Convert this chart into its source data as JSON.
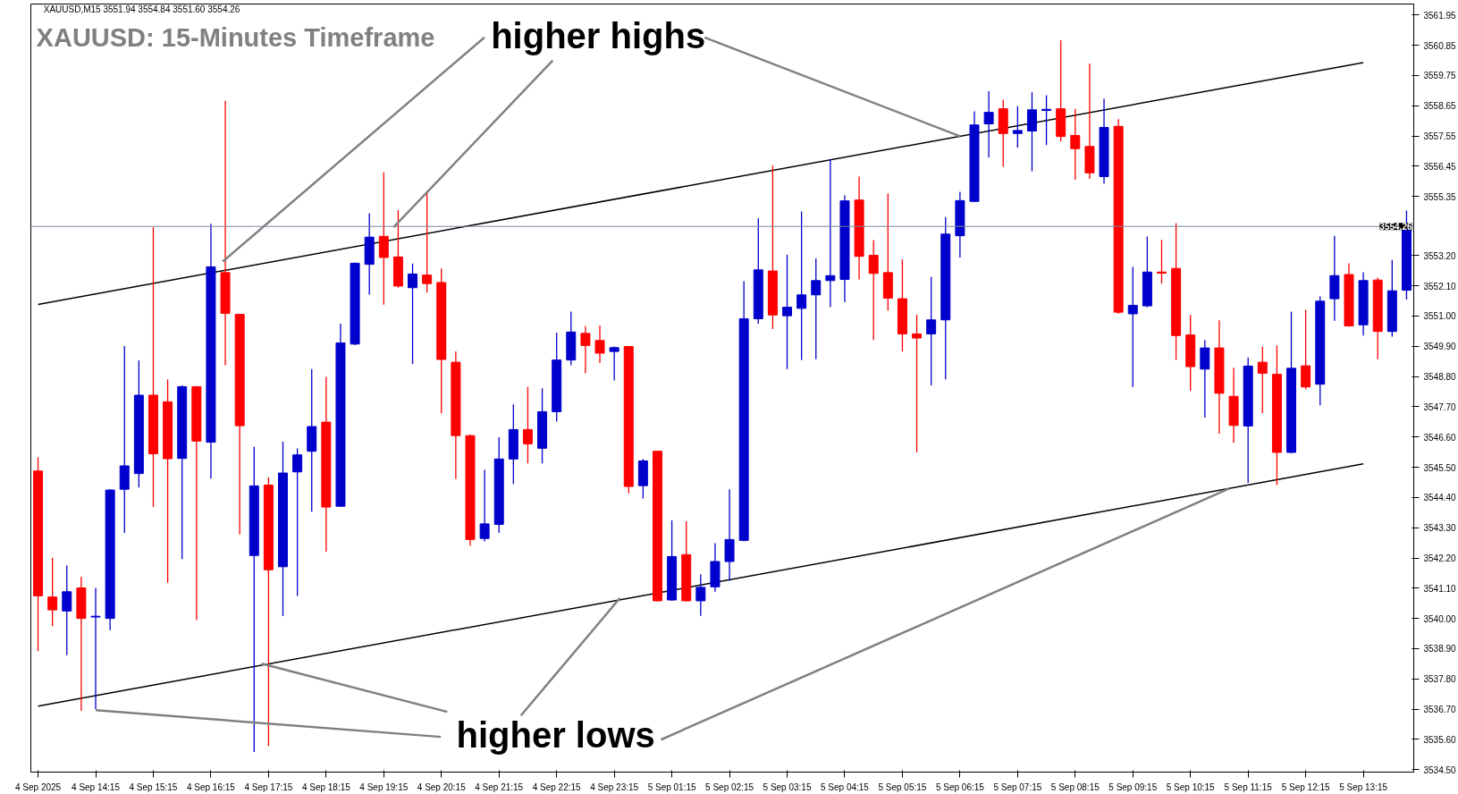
{
  "chart_data": {
    "type": "candlestick",
    "title": "XAUUSD: 15-Minutes Timeframe",
    "annotations": [
      "XAUUSD,M15  3551.94 3554.84 3551.60 3554.26",
      {
        "text": "higher highs",
        "x": "5 Sep 06:15",
        "y": 3557.54
      },
      {
        "text": "higher lows",
        "x": "4 Sep 14:15",
        "y": 3536.66
      }
    ],
    "categories": [
      "4 Sep 2025",
      null,
      null,
      null,
      "4 Sep 14:15",
      null,
      null,
      null,
      "4 Sep 15:15",
      null,
      null,
      null,
      "4 Sep 16:15",
      null,
      null,
      null,
      "4 Sep 17:15",
      null,
      null,
      null,
      "4 Sep 18:15",
      null,
      null,
      null,
      "4 Sep 19:15",
      null,
      null,
      null,
      "4 Sep 20:15",
      null,
      null,
      null,
      "4 Sep 21:15",
      null,
      null,
      null,
      "4 Sep 22:15",
      null,
      null,
      null,
      "4 Sep 23:15",
      null,
      null,
      null,
      "5 Sep 01:15",
      null,
      null,
      null,
      "5 Sep 02:15",
      null,
      null,
      null,
      "5 Sep 03:15",
      null,
      null,
      null,
      "5 Sep 04:15",
      null,
      null,
      null,
      "5 Sep 05:15",
      null,
      null,
      null,
      "5 Sep 06:15",
      null,
      null,
      null,
      "5 Sep 07:15",
      null,
      null,
      null,
      "5 Sep 08:15",
      null,
      null,
      null,
      "5 Sep 09:15",
      null,
      null,
      null,
      "5 Sep 10:15",
      null,
      null,
      null,
      "5 Sep 11:15",
      null,
      null,
      null,
      "5 Sep 12:15",
      null,
      null,
      null,
      "5 Sep 13:15",
      null,
      null,
      null
    ],
    "ohlc": [
      [
        3545.36,
        3545.86,
        3538.81,
        3540.82
      ],
      [
        3540.78,
        3542.21,
        3539.72,
        3540.31
      ],
      [
        3540.27,
        3541.92,
        3538.66,
        3540.97
      ],
      [
        3541.11,
        3541.52,
        3536.64,
        3540.0
      ],
      [
        3540.05,
        3541.11,
        3536.7,
        3540.08
      ],
      [
        3540.0,
        3544.7,
        3539.57,
        3544.67
      ],
      [
        3544.7,
        3549.91,
        3543.11,
        3545.55
      ],
      [
        3545.27,
        3549.39,
        3544.76,
        3548.12
      ],
      [
        3548.12,
        3554.23,
        3544.05,
        3545.99
      ],
      [
        3547.88,
        3548.7,
        3541.3,
        3545.81
      ],
      [
        3545.82,
        3548.48,
        3542.16,
        3548.43
      ],
      [
        3548.43,
        3548.45,
        3539.94,
        3546.45
      ],
      [
        3546.41,
        3554.36,
        3545.09,
        3552.79
      ],
      [
        3552.58,
        3558.83,
        3549.21,
        3551.1
      ],
      [
        3551.06,
        3551.08,
        3543.05,
        3547.01
      ],
      [
        3542.29,
        3546.24,
        3535.14,
        3544.82
      ],
      [
        3544.85,
        3545.13,
        3535.36,
        3541.77
      ],
      [
        3541.88,
        3546.43,
        3540.09,
        3545.29
      ],
      [
        3545.33,
        3546.19,
        3540.82,
        3545.95
      ],
      [
        3546.08,
        3549.07,
        3543.88,
        3546.98
      ],
      [
        3547.14,
        3548.79,
        3542.43,
        3544.05
      ],
      [
        3544.08,
        3550.72,
        3544.06,
        3550.02
      ],
      [
        3549.98,
        3552.95,
        3549.94,
        3552.92
      ],
      [
        3552.88,
        3554.74,
        3551.78,
        3553.87
      ],
      [
        3553.9,
        3556.23,
        3551.41,
        3553.13
      ],
      [
        3553.15,
        3554.85,
        3552.03,
        3552.09
      ],
      [
        3552.03,
        3552.91,
        3549.25,
        3552.53
      ],
      [
        3552.49,
        3555.55,
        3551.85,
        3552.18
      ],
      [
        3552.22,
        3552.73,
        3547.45,
        3549.42
      ],
      [
        3549.32,
        3549.71,
        3545.07,
        3546.65
      ],
      [
        3546.65,
        3546.7,
        3542.65,
        3542.87
      ],
      [
        3542.91,
        3545.4,
        3542.8,
        3543.44
      ],
      [
        3543.42,
        3546.59,
        3543.11,
        3545.8
      ],
      [
        3545.8,
        3547.79,
        3544.89,
        3546.87
      ],
      [
        3546.87,
        3548.42,
        3545.64,
        3546.35
      ],
      [
        3546.19,
        3548.37,
        3545.64,
        3547.52
      ],
      [
        3547.52,
        3550.4,
        3547.16,
        3549.4
      ],
      [
        3549.4,
        3551.16,
        3549.21,
        3550.42
      ],
      [
        3550.37,
        3550.63,
        3548.92,
        3549.93
      ],
      [
        3550.11,
        3550.66,
        3549.29,
        3549.65
      ],
      [
        3549.71,
        3549.89,
        3548.66,
        3549.85
      ],
      [
        3549.89,
        3549.91,
        3544.54,
        3544.8
      ],
      [
        3544.83,
        3545.8,
        3544.36,
        3545.73
      ],
      [
        3546.08,
        3546.1,
        3540.62,
        3540.64
      ],
      [
        3540.67,
        3543.57,
        3540.65,
        3542.25
      ],
      [
        3542.32,
        3543.53,
        3540.62,
        3540.64
      ],
      [
        3540.64,
        3541.61,
        3540.09,
        3541.13
      ],
      [
        3541.15,
        3542.74,
        3540.97,
        3542.07
      ],
      [
        3542.07,
        3544.7,
        3541.37,
        3542.87
      ],
      [
        3542.84,
        3552.27,
        3542.8,
        3550.9
      ],
      [
        3550.9,
        3554.56,
        3550.72,
        3552.68
      ],
      [
        3552.64,
        3556.47,
        3550.53,
        3551.04
      ],
      [
        3551.01,
        3553.23,
        3549.07,
        3551.32
      ],
      [
        3551.28,
        3554.8,
        3549.4,
        3551.77
      ],
      [
        3551.77,
        3553.1,
        3549.43,
        3552.29
      ],
      [
        3552.29,
        3556.71,
        3551.32,
        3552.47
      ],
      [
        3552.33,
        3555.39,
        3551.5,
        3555.19
      ],
      [
        3555.22,
        3556.07,
        3552.33,
        3553.17
      ],
      [
        3553.21,
        3553.76,
        3550.13,
        3552.55
      ],
      [
        3552.58,
        3555.46,
        3551.19,
        3551.65
      ],
      [
        3551.63,
        3553.06,
        3549.71,
        3550.35
      ],
      [
        3550.35,
        3551.05,
        3546.04,
        3550.2
      ],
      [
        3550.35,
        3552.42,
        3548.48,
        3550.86
      ],
      [
        3550.86,
        3554.6,
        3548.7,
        3553.98
      ],
      [
        3553.92,
        3555.52,
        3553.13,
        3555.2
      ],
      [
        3555.17,
        3558.45,
        3555.15,
        3557.95
      ],
      [
        3557.99,
        3559.18,
        3556.76,
        3558.41
      ],
      [
        3558.54,
        3558.87,
        3556.43,
        3557.64
      ],
      [
        3557.64,
        3558.63,
        3557.13,
        3557.75
      ],
      [
        3557.73,
        3559.14,
        3556.27,
        3558.5
      ],
      [
        3558.48,
        3559.03,
        3557.22,
        3558.52
      ],
      [
        3558.54,
        3561.03,
        3557.35,
        3557.53
      ],
      [
        3557.57,
        3558.54,
        3555.96,
        3557.09
      ],
      [
        3557.17,
        3560.19,
        3555.99,
        3556.21
      ],
      [
        3556.07,
        3558.91,
        3555.81,
        3557.86
      ],
      [
        3557.9,
        3558.16,
        3551.08,
        3551.14
      ],
      [
        3551.08,
        3552.79,
        3548.42,
        3551.39
      ],
      [
        3551.37,
        3553.89,
        3551.32,
        3552.6
      ],
      [
        3552.6,
        3553.77,
        3552.18,
        3552.56
      ],
      [
        3552.73,
        3554.38,
        3549.4,
        3550.29
      ],
      [
        3550.31,
        3551.04,
        3548.28,
        3549.16
      ],
      [
        3549.07,
        3550.13,
        3547.31,
        3549.84
      ],
      [
        3549.84,
        3550.84,
        3546.72,
        3548.19
      ],
      [
        3548.08,
        3549.12,
        3546.39,
        3547.02
      ],
      [
        3547.0,
        3549.49,
        3544.93,
        3549.18
      ],
      [
        3549.32,
        3549.89,
        3547.47,
        3548.92
      ],
      [
        3548.88,
        3549.93,
        3544.85,
        3546.04
      ],
      [
        3546.04,
        3551.16,
        3546.0,
        3549.1
      ],
      [
        3549.19,
        3551.23,
        3548.33,
        3548.42
      ],
      [
        3548.52,
        3551.71,
        3547.75,
        3551.54
      ],
      [
        3551.63,
        3553.92,
        3550.83,
        3552.47
      ],
      [
        3552.51,
        3552.92,
        3550.62,
        3550.64
      ],
      [
        3550.68,
        3552.59,
        3550.29,
        3552.29
      ],
      [
        3552.31,
        3552.4,
        3549.43,
        3550.44
      ],
      [
        3550.44,
        3553.04,
        3550.25,
        3551.92
      ],
      [
        3551.94,
        3554.84,
        3551.6,
        3554.26
      ]
    ],
    "colors": [
      "#ff0000",
      "#ff0000",
      "#0000cc",
      "#ff0000",
      "#0000cc",
      "#0000cc",
      "#0000cc",
      "#0000cc",
      "#ff0000",
      "#ff0000",
      "#0000cc",
      "#ff0000",
      "#0000cc",
      "#ff0000",
      "#ff0000",
      "#0000cc",
      "#ff0000",
      "#0000cc",
      "#0000cc",
      "#0000cc",
      "#ff0000",
      "#0000cc",
      "#0000cc",
      "#0000cc",
      "#ff0000",
      "#ff0000",
      "#0000cc",
      "#ff0000",
      "#ff0000",
      "#ff0000",
      "#ff0000",
      "#0000cc",
      "#0000cc",
      "#0000cc",
      "#ff0000",
      "#0000cc",
      "#0000cc",
      "#0000cc",
      "#ff0000",
      "#ff0000",
      "#0000cc",
      "#ff0000",
      "#0000cc",
      "#ff0000",
      "#0000cc",
      "#ff0000",
      "#0000cc",
      "#0000cc",
      "#0000cc",
      "#0000cc",
      "#0000cc",
      "#ff0000",
      "#0000cc",
      "#0000cc",
      "#0000cc",
      "#0000cc",
      "#0000cc",
      "#ff0000",
      "#ff0000",
      "#ff0000",
      "#ff0000",
      "#ff0000",
      "#0000cc",
      "#0000cc",
      "#0000cc",
      "#0000cc",
      "#0000cc",
      "#ff0000",
      "#0000cc",
      "#0000cc",
      "#0000cc",
      "#ff0000",
      "#ff0000",
      "#ff0000",
      "#0000cc",
      "#ff0000",
      "#0000cc",
      "#0000cc",
      "#ff0000",
      "#ff0000",
      "#ff0000",
      "#0000cc",
      "#ff0000",
      "#ff0000",
      "#0000cc",
      "#ff0000",
      "#ff0000",
      "#0000cc",
      "#ff0000",
      "#0000cc",
      "#0000cc",
      "#ff0000",
      "#0000cc",
      "#ff0000",
      "#0000cc",
      "#0000cc"
    ],
    "series": [
      {
        "type": "line",
        "x": [
          "4 Sep 2025",
          "5 Sep 13:15"
        ],
        "values": [
          3551.42,
          3560.22
        ],
        "color": "#000000"
      },
      {
        "type": "line",
        "x": [
          "4 Sep 2025",
          "5 Sep 13:15"
        ],
        "values": [
          3536.81,
          3545.62
        ],
        "color": "#000000"
      }
    ],
    "ylim": [
      3534.41,
      3562.35
    ],
    "yticks": [
      {
        "value": 3534.5,
        "label": "3534.50"
      },
      {
        "value": 3535.6,
        "label": "3535.60"
      },
      {
        "value": 3536.7,
        "label": "3536.70"
      },
      {
        "value": 3537.8,
        "label": "3537.80"
      },
      {
        "value": 3538.9,
        "label": "3538.90"
      },
      {
        "value": 3540.0,
        "label": "3540.00"
      },
      {
        "value": 3541.1,
        "label": "3541.10"
      },
      {
        "value": 3542.2,
        "label": "3542.20"
      },
      {
        "value": 3543.3,
        "label": "3543.30"
      },
      {
        "value": 3544.4,
        "label": "3544.40"
      },
      {
        "value": 3545.5,
        "label": "3545.50"
      },
      {
        "value": 3546.6,
        "label": "3546.60"
      },
      {
        "value": 3547.7,
        "label": "3547.70"
      },
      {
        "value": 3548.8,
        "label": "3548.80"
      },
      {
        "value": 3549.9,
        "label": "3549.90"
      },
      {
        "value": 3551.0,
        "label": "3551.00"
      },
      {
        "value": 3552.1,
        "label": "3552.10"
      },
      {
        "value": 3553.2,
        "label": "3553.20"
      },
      {
        "value": 3555.35,
        "label": "3555.35"
      },
      {
        "value": 3556.45,
        "label": "3556.45"
      },
      {
        "value": 3557.55,
        "label": "3557.55"
      },
      {
        "value": 3558.65,
        "label": "3558.65"
      },
      {
        "value": 3559.75,
        "label": "3559.75"
      },
      {
        "value": 3560.85,
        "label": "3560.85"
      },
      {
        "value": 3561.95,
        "label": "3561.95"
      }
    ],
    "ref_lines": [
      {
        "axis": "y",
        "value": 3554.26,
        "label": "3554.26",
        "color": "#778899"
      }
    ]
  }
}
